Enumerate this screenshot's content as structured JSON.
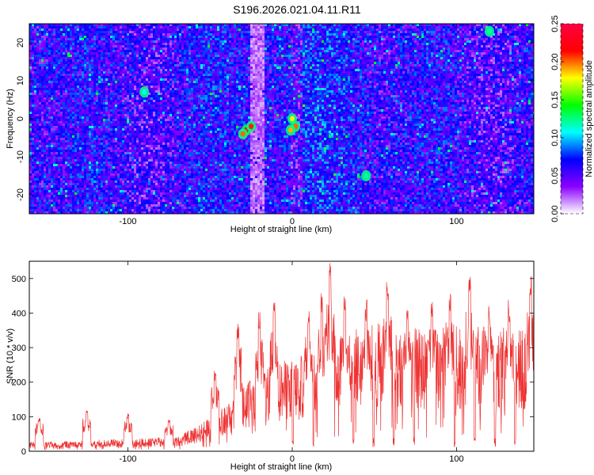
{
  "title": "S196.2026.021.04.11.R11",
  "chart_data": [
    {
      "type": "heatmap",
      "xlabel": "Height of straight line (km)",
      "ylabel": "Frequency (Hz)",
      "xlim": [
        -160,
        147
      ],
      "ylim": [
        -25,
        25
      ],
      "xticks": [
        -100,
        0,
        100
      ],
      "yticks": [
        -20,
        -10,
        0,
        10,
        20
      ],
      "colorbar": {
        "label": "Normalized spectral amplitude",
        "range": [
          0,
          0.25
        ],
        "ticks": [
          "0.00",
          "0.05",
          "0.10",
          "0.15",
          "0.20",
          "0.25"
        ],
        "colors": [
          "#ffffff",
          "#8b00ff",
          "#0000ff",
          "#00ffff",
          "#00ff00",
          "#ffff00",
          "#ff0000",
          "#ff0044"
        ]
      },
      "hotspots": [
        {
          "x": -28,
          "y": -3,
          "value": 0.22
        },
        {
          "x": -25,
          "y": -2,
          "value": 0.21
        },
        {
          "x": -30,
          "y": -4,
          "value": 0.2
        },
        {
          "x": 2,
          "y": -2,
          "value": 0.2
        },
        {
          "x": -1,
          "y": -3,
          "value": 0.19
        },
        {
          "x": 0,
          "y": 0,
          "value": 0.18
        },
        {
          "x": 45,
          "y": -15,
          "value": 0.12
        },
        {
          "x": -90,
          "y": 7,
          "value": 0.11
        },
        {
          "x": 120,
          "y": 23,
          "value": 0.12
        }
      ]
    },
    {
      "type": "line",
      "xlabel": "Height of straight line (km)",
      "ylabel": "SNR (10 * v/v)",
      "xlim": [
        -160,
        147
      ],
      "ylim": [
        0,
        550
      ],
      "xticks": [
        -100,
        0,
        100
      ],
      "yticks": [
        0,
        100,
        200,
        300,
        400,
        500
      ],
      "color": "#ee3333",
      "envelope": {
        "x": [
          -160,
          -70,
          -55,
          -40,
          -30,
          -20,
          -10,
          0,
          10,
          20,
          30,
          40,
          60,
          80,
          100,
          120,
          147
        ],
        "y": [
          20,
          30,
          60,
          100,
          140,
          170,
          190,
          200,
          210,
          240,
          260,
          270,
          280,
          260,
          270,
          270,
          260
        ]
      },
      "peaks": [
        {
          "x": -154,
          "y": 100
        },
        {
          "x": -125,
          "y": 118
        },
        {
          "x": -100,
          "y": 110
        },
        {
          "x": -75,
          "y": 95
        },
        {
          "x": -47,
          "y": 240
        },
        {
          "x": -33,
          "y": 380
        },
        {
          "x": -20,
          "y": 410
        },
        {
          "x": -11,
          "y": 435
        },
        {
          "x": 10,
          "y": 415
        },
        {
          "x": 18,
          "y": 470
        },
        {
          "x": 23,
          "y": 550
        },
        {
          "x": 32,
          "y": 450
        },
        {
          "x": 45,
          "y": 440
        },
        {
          "x": 58,
          "y": 500
        },
        {
          "x": 70,
          "y": 420
        },
        {
          "x": 85,
          "y": 445
        },
        {
          "x": 96,
          "y": 470
        },
        {
          "x": 108,
          "y": 505
        },
        {
          "x": 120,
          "y": 420
        },
        {
          "x": 132,
          "y": 440
        },
        {
          "x": 145,
          "y": 515
        }
      ]
    }
  ]
}
